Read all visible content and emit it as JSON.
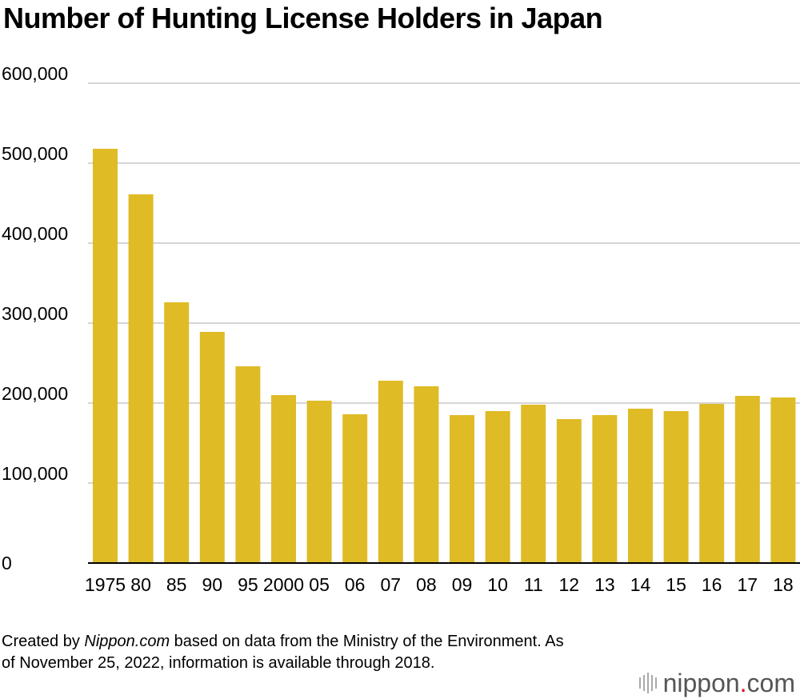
{
  "title": "Number of Hunting License Holders in Japan",
  "footer": {
    "prefix": "Created by ",
    "source_name": "Nippon.com",
    "suffix": " based on data from the Ministry of the Environment. As of November 25, 2022, information is available through 2018."
  },
  "logo": {
    "name": "nippon",
    "dot": ".",
    "tld": "com",
    "dot_color": "#e60012"
  },
  "chart_data": {
    "type": "bar",
    "categories": [
      "1975",
      "80",
      "85",
      "90",
      "95",
      "2000",
      "05",
      "06",
      "07",
      "08",
      "09",
      "10",
      "11",
      "12",
      "13",
      "14",
      "15",
      "16",
      "17",
      "18"
    ],
    "values": [
      518000,
      461000,
      326000,
      289000,
      246000,
      210000,
      203000,
      186000,
      228000,
      221000,
      185000,
      190000,
      198000,
      180000,
      185000,
      193000,
      190000,
      199000,
      209000,
      207000
    ],
    "ylim": [
      0,
      600000
    ],
    "yticks": [
      0,
      100000,
      200000,
      300000,
      400000,
      500000,
      600000
    ],
    "ytick_labels": [
      "0",
      "100,000",
      "200,000",
      "300,000",
      "400,000",
      "500,000",
      "600,000"
    ],
    "bar_color": "#dfbb26",
    "grid": true,
    "gridline_color": "#c8c8c8",
    "xlabel": "",
    "ylabel": ""
  }
}
